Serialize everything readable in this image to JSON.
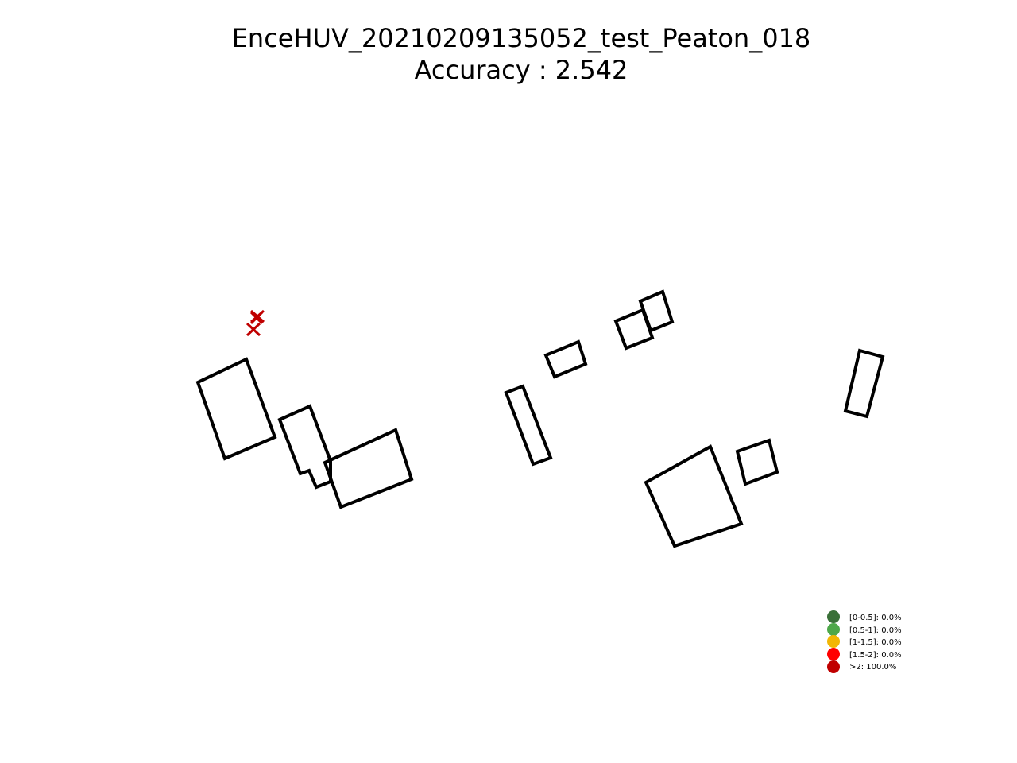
{
  "title": {
    "line1": "EnceHUV_20210209135052_test_Peaton_018",
    "line2": "Accuracy : 2.542"
  },
  "legend": {
    "items": [
      {
        "label": "[0-0.5]: 0.0%",
        "color": "#3a7038"
      },
      {
        "label": "[0.5-1]: 0.0%",
        "color": "#4ea84a"
      },
      {
        "label": "[1-1.5]: 0.0%",
        "color": "#f2b705"
      },
      {
        "label": "[1.5-2]: 0.0%",
        "color": "#ff0000"
      },
      {
        "label": ">2: 100.0%",
        "color": "#c00000"
      }
    ]
  },
  "markers": {
    "symbol": "x",
    "color": "#c00000",
    "accuracy_class": ">2"
  }
}
